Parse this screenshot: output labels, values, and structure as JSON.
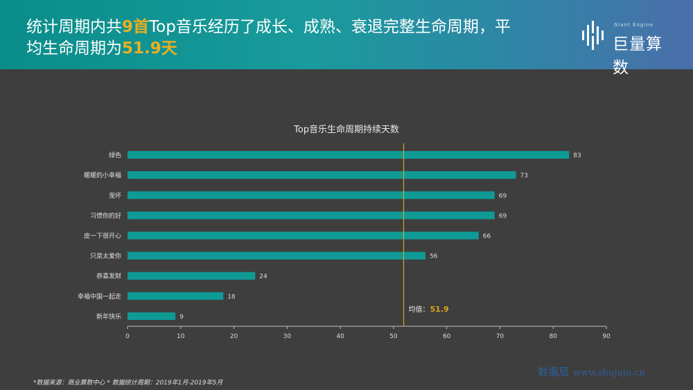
{
  "header": {
    "headline_part1": "统计周期内共",
    "headline_highlight1": "9首",
    "headline_part2": "Top音乐经历了成长、成熟、衰退完整生命周期，平均生命周期为",
    "headline_highlight2": "51.9天",
    "logo_small": "Giant Engine",
    "logo_text": "巨量算数"
  },
  "chart_data": {
    "type": "bar",
    "orientation": "horizontal",
    "title": "Top音乐生命周期持续天数",
    "categories": [
      "绿色",
      "暖暖的小幸福",
      "宠坏",
      "习惯你的好",
      "皮一下很开心",
      "只是太爱你",
      "恭喜发财",
      "幸福中国一起走",
      "新年快乐"
    ],
    "values": [
      83,
      73,
      69,
      69,
      66,
      56,
      24,
      18,
      9
    ],
    "xlim": [
      0,
      90
    ],
    "xticks": [
      0,
      10,
      20,
      30,
      40,
      50,
      60,
      70,
      80,
      90
    ],
    "grid": false,
    "bar_color": "#0f9a96",
    "reference_line": {
      "value": 51.9,
      "label": "均值：",
      "label_value": "51.9",
      "color": "#d9a520"
    }
  },
  "footer": {
    "note": "*数据来源：商业算数中心 * 数据统计周期：2019年1月-2019年5月",
    "watermark": "数据局",
    "watermark_url": "www.shujuju.cn"
  },
  "colors": {
    "background": "#3e3e3e",
    "highlight": "#e8b022",
    "axis": "#bdbdbd"
  }
}
